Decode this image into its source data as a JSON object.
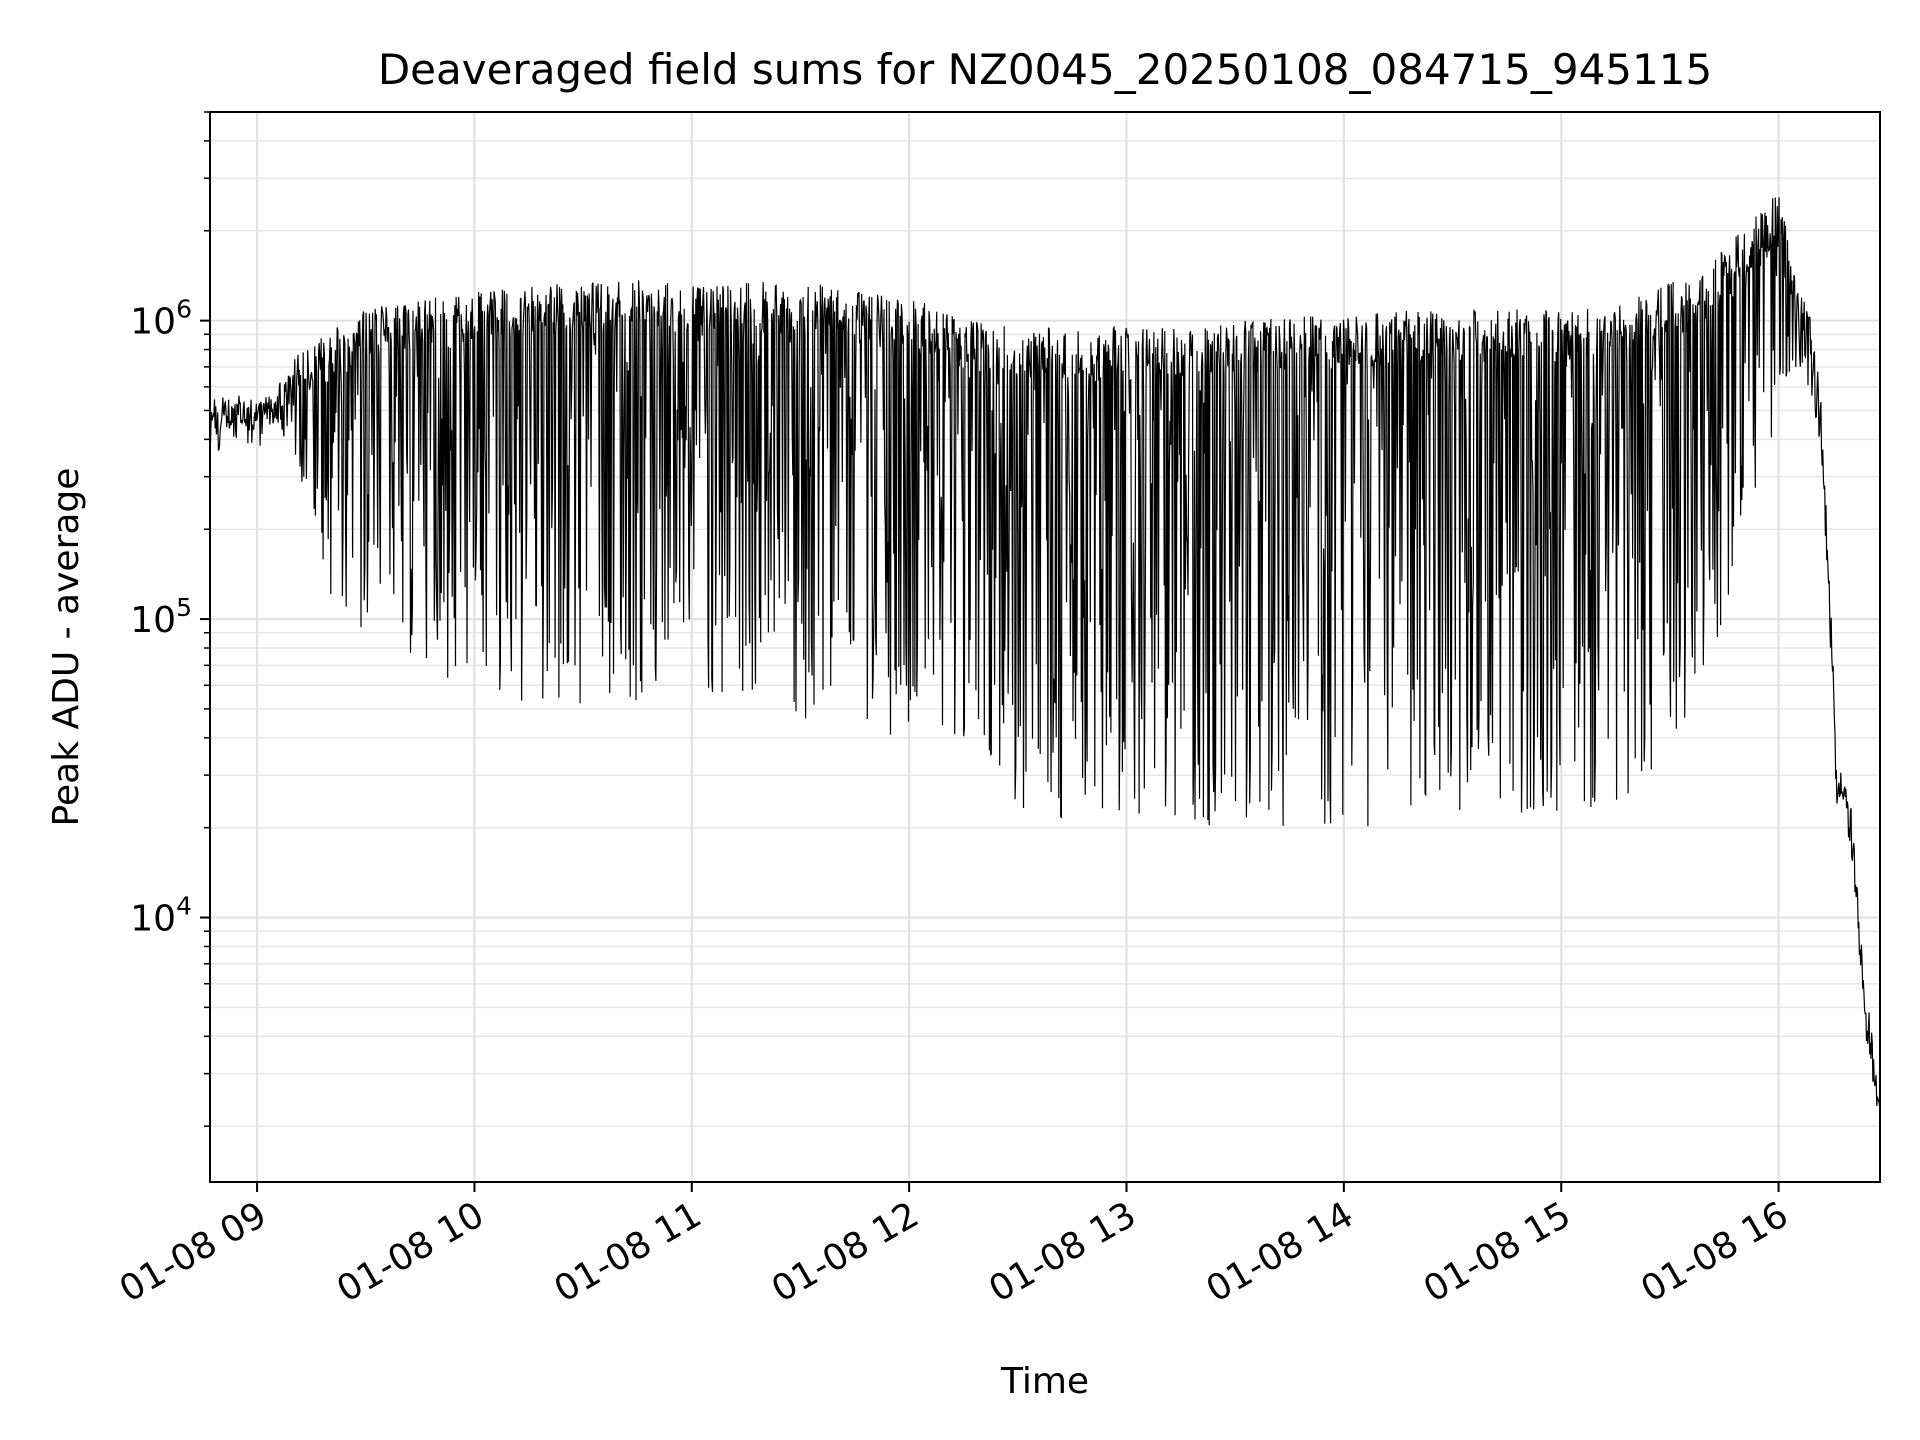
{
  "chart_data": {
    "type": "line",
    "title": "Deaveraged field sums for NZ0045_20250108_084715_945115",
    "xlabel": "Time",
    "ylabel": "Peak ADU - average",
    "x_scale": "time",
    "y_scale": "log",
    "xlim": [
      "2025-01-08 08:47",
      "2025-01-08 16:28"
    ],
    "ylim": [
      1300,
      5000000
    ],
    "xticks": [
      "01-08 09",
      "01-08 10",
      "01-08 11",
      "01-08 12",
      "01-08 13",
      "01-08 14",
      "01-08 15",
      "01-08 16"
    ],
    "yticks": [
      {
        "base": "10",
        "exp": "4",
        "value": 10000
      },
      {
        "base": "10",
        "exp": "5",
        "value": 100000
      },
      {
        "base": "10",
        "exp": "6",
        "value": 1000000
      }
    ],
    "grid": true,
    "line_color": "#000000",
    "series": [
      {
        "x": [
          "2025-01-08 08:47",
          "2025-01-08 09:05",
          "2025-01-08 09:10",
          "2025-01-08 09:20",
          "2025-01-08 09:30",
          "2025-01-08 09:45",
          "2025-01-08 10:00",
          "2025-01-08 10:30",
          "2025-01-08 11:00",
          "2025-01-08 11:30",
          "2025-01-08 12:00",
          "2025-01-08 12:20",
          "2025-01-08 12:30",
          "2025-01-08 13:00",
          "2025-01-08 13:30",
          "2025-01-08 14:00",
          "2025-01-08 14:30",
          "2025-01-08 15:00",
          "2025-01-08 15:20",
          "2025-01-08 15:40",
          "2025-01-08 16:00",
          "2025-01-08 16:05",
          "2025-01-08 16:08",
          "2025-01-08 16:10",
          "2025-01-08 16:12",
          "2025-01-08 16:14",
          "2025-01-08 16:16",
          "2025-01-08 16:18",
          "2025-01-08 16:20",
          "2025-01-08 16:22",
          "2025-01-08 16:24",
          "2025-01-08 16:26",
          "2025-01-08 16:28"
        ],
        "upper": [
          550000,
          580000,
          750000,
          950000,
          1100000,
          1200000,
          1250000,
          1350000,
          1400000,
          1350000,
          1200000,
          1000000,
          950000,
          950000,
          1000000,
          1050000,
          1100000,
          1100000,
          1200000,
          1500000,
          2800000,
          1300000,
          1100000,
          900000,
          500000,
          150000,
          35000,
          28000,
          25000,
          12000,
          6000,
          4000,
          2300
        ],
        "lower": [
          420000,
          450000,
          350000,
          120000,
          90000,
          70000,
          55000,
          50000,
          55000,
          45000,
          40000,
          35000,
          22000,
          20000,
          20000,
          20000,
          20000,
          22000,
          25000,
          60000,
          500000,
          700000,
          600000,
          500000,
          300000,
          80000,
          25000,
          22000,
          15000,
          8000,
          4500,
          2800,
          2000
        ]
      }
    ]
  }
}
